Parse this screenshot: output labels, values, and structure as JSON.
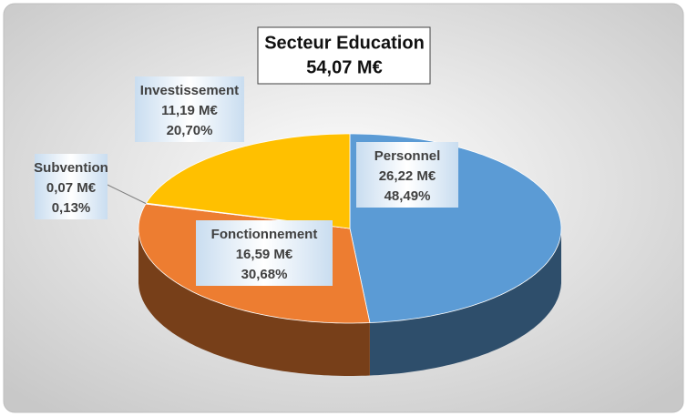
{
  "chart_data": {
    "type": "pie3d",
    "title": "Secteur Education",
    "subtitle": "54,07 M€",
    "categories": [
      "Personnel",
      "Fonctionnement",
      "Subvention",
      "Investissement"
    ],
    "values": [
      26.22,
      16.59,
      0.07,
      11.19
    ],
    "value_labels": [
      "26,22 M€",
      "16,59 M€",
      "0,07 M€",
      "11,19 M€"
    ],
    "percent_labels": [
      "48,49%",
      "30,68%",
      "0,13%",
      "20,70%"
    ],
    "colors": [
      "#5b9bd5",
      "#ed7d31",
      "#a5a5a5",
      "#ffc000"
    ]
  }
}
